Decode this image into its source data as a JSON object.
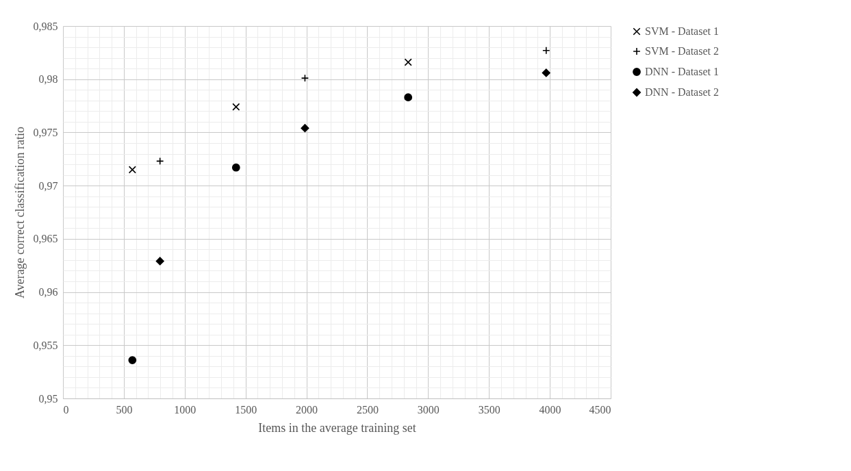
{
  "chart_data": {
    "type": "scatter",
    "xlabel": "Items in the average training set",
    "ylabel": "Average correct classification ratio",
    "xlim": [
      0,
      4500
    ],
    "xticks": [
      0,
      500,
      1000,
      1500,
      2000,
      2500,
      3000,
      3500,
      4000,
      4500
    ],
    "ylim": [
      0.95,
      0.985
    ],
    "yticks": [
      {
        "value": 0.95,
        "label": "0,95"
      },
      {
        "value": 0.955,
        "label": "0,955"
      },
      {
        "value": 0.96,
        "label": "0,96"
      },
      {
        "value": 0.965,
        "label": "0,965"
      },
      {
        "value": 0.97,
        "label": "0,97"
      },
      {
        "value": 0.975,
        "label": "0,975"
      },
      {
        "value": 0.98,
        "label": "0,98"
      },
      {
        "value": 0.985,
        "label": "0,985"
      }
    ],
    "grid": true,
    "legend": "right",
    "series": [
      {
        "name": "SVM - Dataset 1",
        "color": "#000000",
        "marker": "x",
        "x": [
          570,
          1422,
          2836
        ],
        "values": [
          0.9715,
          0.9774,
          0.9816
        ]
      },
      {
        "name": "SVM - Dataset 2",
        "color": "#000000",
        "marker": "cross",
        "x": [
          797,
          1988,
          3970
        ],
        "values": [
          0.9723,
          0.9801,
          0.9827
        ]
      },
      {
        "name": "DNN - Dataset 1",
        "color": "#000000",
        "marker": "circle",
        "x": [
          570,
          1422,
          2836
        ],
        "values": [
          0.9536,
          0.9717,
          0.9783
        ]
      },
      {
        "name": "DNN - Dataset 2",
        "color": "#000000",
        "marker": "diamond",
        "x": [
          797,
          1988,
          3970
        ],
        "values": [
          0.9629,
          0.9754,
          0.9806
        ]
      }
    ]
  }
}
